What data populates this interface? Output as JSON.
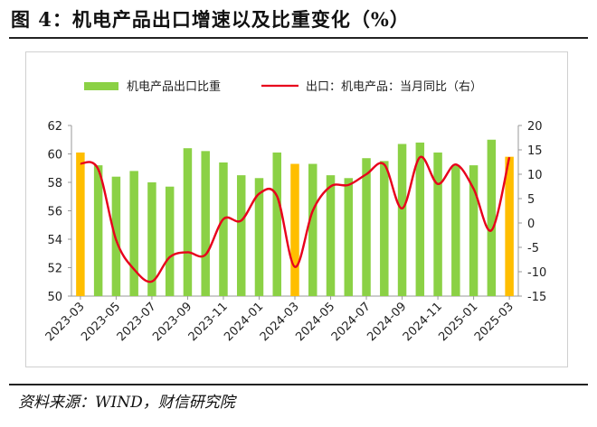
{
  "figure_title": "图 4：机电产品出口增速以及比重变化（%）",
  "source": "资料来源：WIND，财信研究院",
  "colors": {
    "green": "#8BD145",
    "orange": "#FFBE00",
    "line": "#E8001C"
  },
  "chart_data": {
    "type": "bar+line",
    "title": "",
    "categories": [
      "2023-03",
      "2023-04",
      "2023-05",
      "2023-06",
      "2023-07",
      "2023-08",
      "2023-09",
      "2023-10",
      "2023-11",
      "2023-12",
      "2024-01",
      "2024-02",
      "2024-03",
      "2024-04",
      "2024-05",
      "2024-06",
      "2024-07",
      "2024-08",
      "2024-09",
      "2024-10",
      "2024-11",
      "2024-12",
      "2025-01",
      "2025-02",
      "2025-03"
    ],
    "x_tick_labels": [
      "2023-03",
      "2023-05",
      "2023-07",
      "2023-09",
      "2023-11",
      "2024-01",
      "2024-03",
      "2024-05",
      "2024-07",
      "2024-09",
      "2024-11",
      "2025-01",
      "2025-03"
    ],
    "highlight_months": [
      "2023-03",
      "2024-03",
      "2025-03"
    ],
    "left_axis": {
      "ylim": [
        50,
        62
      ],
      "ticks": [
        50,
        52,
        54,
        56,
        58,
        60,
        62
      ]
    },
    "right_axis": {
      "ylim": [
        -15,
        20
      ],
      "ticks": [
        -15,
        -10,
        -5,
        0,
        5,
        10,
        15,
        20
      ]
    },
    "series": [
      {
        "name": "机电产品出口比重",
        "type": "bar",
        "axis": "left",
        "values": [
          60.1,
          59.2,
          58.4,
          58.8,
          58.0,
          57.7,
          60.4,
          60.2,
          59.4,
          58.5,
          58.3,
          60.1,
          59.3,
          59.3,
          58.5,
          58.3,
          59.7,
          59.5,
          60.7,
          60.8,
          60.1,
          59.2,
          59.2,
          61.0,
          59.8
        ]
      },
      {
        "name": "出口：机电产品：当月同比（右）",
        "type": "line",
        "axis": "right",
        "values": [
          12.2,
          11.0,
          -3.5,
          -9.5,
          -12.0,
          -7.0,
          -6.0,
          -6.5,
          0.8,
          0.5,
          6.0,
          5.5,
          -9.0,
          2.5,
          7.5,
          7.8,
          10.0,
          12.0,
          3.0,
          13.5,
          8.0,
          12.0,
          7.0,
          -1.5,
          13.5
        ]
      }
    ],
    "legend_placement": "top",
    "grid": false
  }
}
